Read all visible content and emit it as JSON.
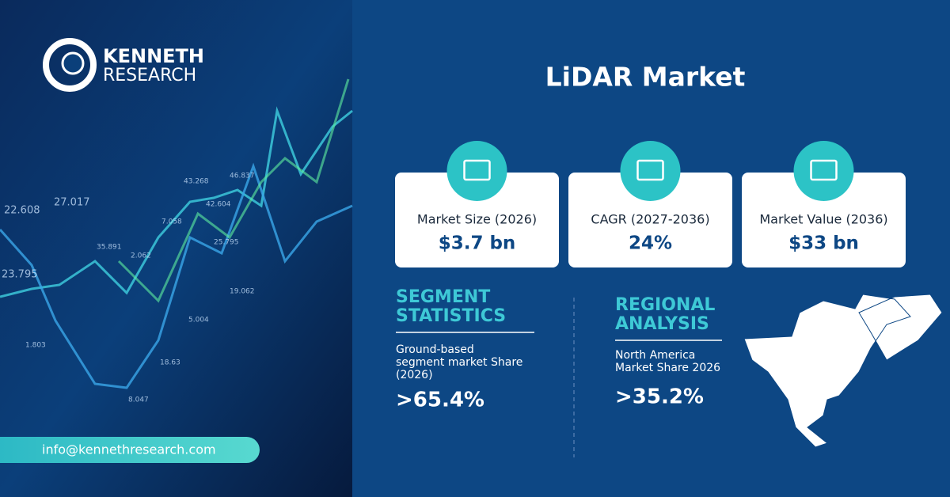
{
  "brand": {
    "name": "KENNETH",
    "sub": "RESEARCH"
  },
  "title": "LiDAR Market",
  "cards": [
    {
      "label": "Market Size (2026)",
      "value": "$3.7 bn"
    },
    {
      "label": "CAGR (2027-2036)",
      "value": "24%"
    },
    {
      "label": "Market Value (2036)",
      "value": "$33 bn"
    }
  ],
  "segment": {
    "heading": [
      "SEGMENT",
      "STATISTICS"
    ],
    "text": [
      "Ground-based",
      "segment market Share",
      "(2026)"
    ],
    "value": ">65.4%"
  },
  "regional": {
    "heading": [
      "REGIONAL",
      "ANALYSIS"
    ],
    "text": [
      "North America",
      "Market Share 2026"
    ],
    "value": ">35.2%"
  },
  "contact": "info@kennethresearch.com",
  "background": {
    "labels": [
      "22.608",
      "27.017",
      "23.795",
      "35.891",
      "1.803",
      "2.062",
      "7.058",
      "43.268",
      "46.837",
      "42.604",
      "25.795",
      "19.062",
      "5.004",
      "18.63",
      "8.047"
    ]
  }
}
